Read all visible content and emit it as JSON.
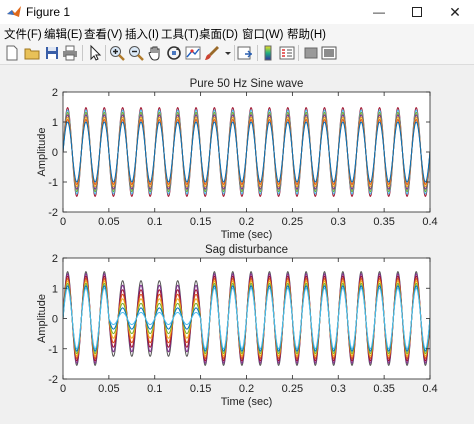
{
  "window": {
    "title": "Figure 1"
  },
  "menu": [
    "文件(F)",
    "编辑(E)",
    "查看(V)",
    "插入(I)",
    "工具(T)",
    "桌面(D)",
    "窗口(W)",
    "帮助(H)"
  ],
  "toolbar_icons": [
    "new-file-icon",
    "open-folder-icon",
    "save-icon",
    "print-icon",
    "pointer-icon",
    "zoom-in-icon",
    "zoom-out-icon",
    "pan-hand-icon",
    "rotate-3d-icon",
    "data-cursor-icon",
    "brush-icon",
    "link-plot-icon",
    "insert-colorbar-icon",
    "insert-legend-icon",
    "hide-plot-tools-icon",
    "show-plot-tools-icon"
  ],
  "chart_data": [
    {
      "type": "line",
      "title": "Pure 50 Hz Sine wave",
      "xlabel": "Time (sec)",
      "ylabel": "Amplitude",
      "xlim": [
        0,
        0.4
      ],
      "ylim": [
        -2,
        2
      ],
      "xticks": [
        "0",
        "0.05",
        "0.1",
        "0.15",
        "0.2",
        "0.25",
        "0.3",
        "0.35",
        "0.4"
      ],
      "yticks": [
        "2",
        "1",
        "0",
        "-1",
        "-2"
      ],
      "frequency_hz": 50,
      "amplitudes": [
        1.0,
        1.08,
        1.16,
        1.24,
        1.32,
        1.4,
        1.48
      ],
      "series_colors": [
        "#0072bd",
        "#d95319",
        "#edb120",
        "#7e2f8e",
        "#77ac30",
        "#4dbeee",
        "#a2142f"
      ]
    },
    {
      "type": "line",
      "title": "Sag disturbance",
      "xlabel": "Time (sec)",
      "ylabel": "Amplitude",
      "xlim": [
        0,
        0.4
      ],
      "ylim": [
        -2,
        2
      ],
      "xticks": [
        "0",
        "0.05",
        "0.1",
        "0.15",
        "0.2",
        "0.25",
        "0.3",
        "0.35",
        "0.4"
      ],
      "yticks": [
        "2",
        "1",
        "0",
        "-1",
        "-2"
      ],
      "frequency_hz": 50,
      "sag_interval_sec": [
        0.05,
        0.15
      ],
      "sag_amplitudes": [
        0.2,
        0.35,
        0.5,
        0.65,
        0.8,
        0.95,
        1.1,
        1.25
      ],
      "normal_amplitudes": [
        1.0,
        1.08,
        1.16,
        1.24,
        1.32,
        1.4,
        1.48,
        1.55
      ],
      "series_colors": [
        "#4dbeee",
        "#0072bd",
        "#77ac30",
        "#edb120",
        "#d95319",
        "#a2142f",
        "#7e2f8e",
        "#555555"
      ]
    }
  ]
}
